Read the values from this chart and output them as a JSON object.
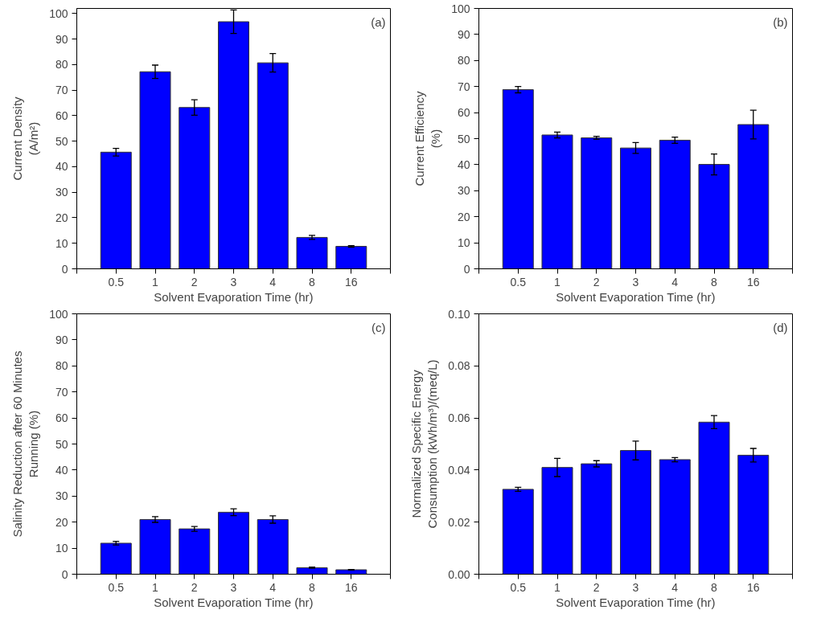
{
  "chart_data": [
    {
      "type": "bar",
      "categories": [
        "0.5",
        "1",
        "2",
        "3",
        "4",
        "8",
        "16"
      ],
      "values": [
        45.7,
        77.2,
        63.2,
        96.8,
        80.7,
        12.3,
        8.8
      ],
      "errors": [
        1.5,
        2.6,
        3.0,
        4.6,
        3.6,
        0.8,
        0.3
      ],
      "color": "#0000ff",
      "ylim": [
        0,
        102
      ],
      "yticks": [
        0,
        10,
        20,
        30,
        40,
        50,
        60,
        70,
        80,
        90,
        100
      ],
      "xlabel": "Solvent Evaporation Time (hr)",
      "ylabel": "Current Density\n(A/m²)",
      "annotations": [
        "(a)"
      ]
    },
    {
      "type": "bar",
      "categories": [
        "0.5",
        "1",
        "2",
        "3",
        "4",
        "8",
        "16"
      ],
      "values": [
        68.8,
        51.4,
        50.3,
        46.4,
        49.4,
        40.1,
        55.4
      ],
      "errors": [
        1.2,
        1.1,
        0.6,
        2.1,
        1.2,
        4.0,
        5.5
      ],
      "color": "#0000ff",
      "ylim": [
        0,
        100
      ],
      "yticks": [
        0,
        10,
        20,
        30,
        40,
        50,
        60,
        70,
        80,
        90,
        100
      ],
      "xlabel": "Solvent Evaporation Time (hr)",
      "ylabel": "Current Efficiency\n(%)",
      "annotations": [
        "(b)"
      ]
    },
    {
      "type": "bar",
      "categories": [
        "0.5",
        "1",
        "2",
        "3",
        "4",
        "8",
        "16"
      ],
      "values": [
        11.9,
        21.0,
        17.4,
        23.8,
        21.0,
        2.5,
        1.7
      ],
      "errors": [
        0.7,
        1.1,
        0.9,
        1.3,
        1.4,
        0.2,
        0.1
      ],
      "color": "#0000ff",
      "ylim": [
        0,
        100
      ],
      "yticks": [
        0,
        10,
        20,
        30,
        40,
        50,
        60,
        70,
        80,
        90,
        100
      ],
      "xlabel": "Solvent Evaporation Time (hr)",
      "ylabel": "Salinity Reduction after 60 Minutes\nRunning (%)",
      "annotations": [
        "(c)"
      ]
    },
    {
      "type": "bar",
      "categories": [
        "0.5",
        "1",
        "2",
        "3",
        "4",
        "8",
        "16"
      ],
      "values": [
        0.0326,
        0.041,
        0.0424,
        0.0475,
        0.044,
        0.0584,
        0.0457
      ],
      "errors": [
        0.0008,
        0.0035,
        0.0012,
        0.0036,
        0.0008,
        0.0025,
        0.0026
      ],
      "color": "#0000ff",
      "ylim": [
        0,
        0.1
      ],
      "yticks": [
        {
          "value": 0,
          "label": "0.00"
        },
        {
          "value": 0.02,
          "label": "0.02"
        },
        {
          "value": 0.04,
          "label": "0.04"
        },
        {
          "value": 0.06,
          "label": "0.06"
        },
        {
          "value": 0.08,
          "label": "0.08"
        },
        {
          "value": 0.1,
          "label": "0.10"
        }
      ],
      "xlabel": "Solvent Evaporation Time (hr)",
      "ylabel": "Normalized Specific Energy\nConsumption (kWh/m³)/(meq/L)",
      "annotations": [
        "(d)"
      ]
    }
  ]
}
